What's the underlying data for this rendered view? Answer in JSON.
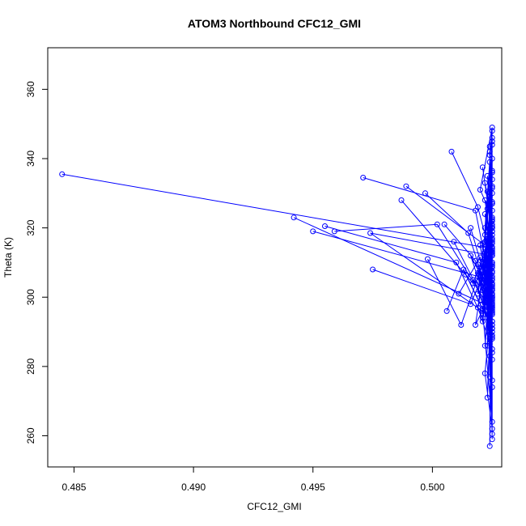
{
  "chart_data": {
    "type": "line",
    "title": "ATOM3 Northbound CFC12_GMI",
    "xlabel": "CFC12_GMI",
    "ylabel": "Theta (K)",
    "xlim": [
      0.4839,
      0.5029
    ],
    "ylim": [
      251,
      372
    ],
    "x_ticks": [
      0.485,
      0.49,
      0.495,
      0.5
    ],
    "x_tick_labels": [
      "0.485",
      "0.490",
      "0.495",
      "0.500"
    ],
    "y_ticks": [
      260,
      280,
      300,
      320,
      340,
      360
    ],
    "y_tick_labels": [
      "260",
      "280",
      "300",
      "320",
      "340",
      "360"
    ],
    "grid": false,
    "legend": "none",
    "marker": "open-circle",
    "color": "#0000ff",
    "series": [
      {
        "x": [
          0.4845,
          0.5025,
          0.5022,
          0.5025,
          0.5018,
          0.5025,
          0.502,
          0.5025,
          0.5022,
          0.5024,
          0.5019,
          0.5025,
          0.5021,
          0.5024,
          0.5023,
          0.4974,
          0.5025,
          0.5021,
          0.5025,
          0.5019,
          0.5025,
          0.5022,
          0.5024,
          0.5023,
          0.5025,
          0.5025,
          0.5024,
          0.5025,
          0.5023,
          0.5025,
          0.5024,
          0.5025,
          0.5021,
          0.5025,
          0.5024,
          0.5025,
          0.5022,
          0.5025,
          0.5024,
          0.5024,
          0.5025,
          0.5024,
          0.5023,
          0.5025,
          0.5024,
          0.5025,
          0.5022,
          0.5025,
          0.5023,
          0.5025,
          0.5024,
          0.5025,
          0.5024,
          0.5025,
          0.5025,
          0.5024,
          0.5025,
          0.5024,
          0.5025,
          0.5025,
          0.5024,
          0.5025,
          0.5025,
          0.5024,
          0.5025,
          0.5025,
          0.5024,
          0.5025,
          0.5024,
          0.5025,
          0.5024,
          0.5025,
          0.5024,
          0.5025,
          0.5024,
          0.5025,
          0.5025,
          0.5024,
          0.5025,
          0.5025,
          0.5024,
          0.5025,
          0.5025,
          0.5024,
          0.5025,
          0.5024,
          0.5025,
          0.5025,
          0.5025,
          0.5024,
          0.5025,
          0.5025,
          0.5024,
          0.5025
        ],
        "y": [
          335.5,
          314.0,
          306.0,
          302.0,
          292.0,
          323.0,
          331.0,
          349.0,
          320.0,
          287.0,
          297.0,
          327.0,
          309.0,
          316.0,
          295.0,
          318.5,
          312.0,
          309.5,
          322.0,
          301.0,
          336.0,
          316.0,
          339.0,
          286.0,
          330.0,
          334.0,
          291.0,
          298.0,
          294.0,
          345.0,
          277.0,
          305.0,
          296.0,
          264.0,
          288.0,
          313.0,
          328.0,
          325.0,
          304.0,
          318.0,
          282.0,
          299.0,
          325.5,
          259.0,
          308.0,
          262.0,
          278.0,
          300.0,
          271.0,
          312.5,
          290.0,
          344.0,
          257.0,
          310.0,
          293.0,
          329.0,
          297.5,
          303.0,
          285.0,
          322.5,
          342.0,
          307.0,
          319.0,
          283.0,
          260.5,
          274.0,
          301.5,
          336.5,
          326.0,
          348.0,
          315.0,
          289.0,
          296.5,
          320.5,
          311.0,
          332.0,
          299.5,
          306.5,
          276.0,
          340.0,
          286.5,
          303.5,
          317.0,
          292.5,
          346.0,
          313.5,
          284.0,
          302.5,
          331.5,
          309.0,
          288.5,
          327.5,
          304.5,
          298.5
        ]
      },
      {
        "x": [
          0.4942,
          0.5025,
          0.502,
          0.5025,
          0.5017,
          0.5024,
          0.5022,
          0.5025,
          0.5021,
          0.5023,
          0.5025,
          0.5024,
          0.5025,
          0.5022,
          0.5024,
          0.5025,
          0.5023,
          0.5025,
          0.5024,
          0.5025,
          0.5025,
          0.5024,
          0.5025,
          0.5023,
          0.5025,
          0.5024,
          0.5025,
          0.5025,
          0.5024,
          0.5025,
          0.5024,
          0.5025,
          0.5025,
          0.5024,
          0.5025,
          0.5025
        ],
        "y": [
          323.0,
          297.0,
          315.0,
          293.0,
          305.0,
          301.0,
          286.0,
          319.0,
          298.0,
          317.5,
          304.0,
          311.5,
          295.5,
          308.5,
          290.5,
          314.5,
          302.0,
          321.0,
          296.0,
          306.0,
          288.0,
          318.0,
          299.0,
          312.0,
          292.0,
          310.5,
          300.5,
          315.5,
          294.5,
          307.5,
          297.0,
          303.0,
          320.0,
          291.5,
          309.5,
          305.5
        ]
      },
      {
        "x": [
          0.495,
          0.5019,
          0.5024,
          0.5016,
          0.5025,
          0.5022,
          0.5025,
          0.5021,
          0.5024,
          0.5025,
          0.5023,
          0.5025
        ],
        "y": [
          319.0,
          306.0,
          295.0,
          312.0,
          300.0,
          318.0,
          292.0,
          302.0,
          314.0,
          296.5,
          308.0,
          303.5
        ]
      },
      {
        "x": [
          0.4955,
          0.501,
          0.5021,
          0.5025,
          0.5018,
          0.5025,
          0.5022,
          0.5024,
          0.5025,
          0.5023,
          0.5025
        ],
        "y": [
          320.5,
          310.0,
          294.0,
          316.0,
          304.0,
          290.0,
          313.0,
          300.0,
          309.0,
          296.0,
          301.0
        ]
      },
      {
        "x": [
          0.4959,
          0.5002,
          0.5022,
          0.5025,
          0.5019,
          0.5025,
          0.5024,
          0.5021,
          0.5025,
          0.5024
        ],
        "y": [
          319.0,
          321.0,
          299.0,
          291.0,
          307.0,
          313.5,
          296.5,
          302.0,
          298.0,
          305.0
        ]
      },
      {
        "x": [
          0.4971,
          0.5018,
          0.5025,
          0.5022,
          0.5025,
          0.502,
          0.5024,
          0.5025,
          0.5023,
          0.5025
        ],
        "y": [
          334.5,
          325.0,
          301.0,
          314.0,
          295.0,
          305.5,
          289.0,
          320.0,
          303.0,
          298.0
        ]
      },
      {
        "x": [
          0.4975,
          0.5016,
          0.5025,
          0.5021,
          0.5024,
          0.5025,
          0.5019,
          0.5025
        ],
        "y": [
          308.0,
          298.0,
          313.0,
          293.0,
          307.0,
          300.0,
          309.5,
          296.0
        ]
      },
      {
        "x": [
          0.4987,
          0.5017,
          0.5024,
          0.5025,
          0.5022,
          0.5025,
          0.5024
        ],
        "y": [
          328.0,
          304.0,
          317.0,
          291.0,
          308.0,
          299.5,
          311.0
        ]
      },
      {
        "x": [
          0.4989,
          0.5021,
          0.5025,
          0.5023,
          0.5025,
          0.5024
        ],
        "y": [
          332.0,
          315.5,
          296.0,
          309.0,
          302.5,
          293.0
        ]
      },
      {
        "x": [
          0.4997,
          0.5015,
          0.5025,
          0.5022,
          0.5025
        ],
        "y": [
          330.0,
          318.5,
          297.0,
          306.0,
          312.0
        ]
      },
      {
        "x": [
          0.4998,
          0.5012,
          0.502,
          0.5025,
          0.5024
        ],
        "y": [
          311.0,
          292.0,
          307.5,
          300.0,
          296.5
        ]
      },
      {
        "x": [
          0.5005,
          0.5018,
          0.5024,
          0.5025,
          0.5022
        ],
        "y": [
          321.0,
          310.5,
          297.0,
          316.5,
          303.0
        ]
      },
      {
        "x": [
          0.5006,
          0.5013,
          0.5025,
          0.5021
        ],
        "y": [
          296.0,
          308.0,
          291.0,
          304.0
        ]
      },
      {
        "x": [
          0.5008,
          0.5019,
          0.5025,
          0.5023,
          0.5025
        ],
        "y": [
          342.0,
          326.0,
          310.0,
          318.0,
          302.0
        ]
      },
      {
        "x": [
          0.5009,
          0.5022,
          0.5025,
          0.5024
        ],
        "y": [
          316.0,
          298.5,
          305.0,
          294.0
        ]
      },
      {
        "x": [
          0.5011,
          0.502,
          0.5025,
          0.5024
        ],
        "y": [
          301.0,
          311.5,
          295.5,
          306.0
        ]
      },
      {
        "x": [
          0.5014,
          0.5021,
          0.5025,
          0.5023,
          0.5025
        ],
        "y": [
          306.5,
          296.5,
          314.0,
          300.5,
          308.5
        ]
      },
      {
        "x": [
          0.5016,
          0.5023,
          0.5025,
          0.5022
        ],
        "y": [
          320.0,
          303.5,
          297.5,
          311.0
        ]
      },
      {
        "x": [
          0.5021,
          0.5025,
          0.5022,
          0.5025,
          0.5024
        ],
        "y": [
          337.5,
          318.0,
          324.0,
          309.0,
          329.0
        ]
      },
      {
        "x": [
          0.5022,
          0.5025,
          0.5023,
          0.5025,
          0.5024
        ],
        "y": [
          333.0,
          322.0,
          330.5,
          312.5,
          326.5
        ]
      },
      {
        "x": [
          0.5024,
          0.5025,
          0.5023,
          0.5025,
          0.5024
        ],
        "y": [
          341.0,
          327.0,
          335.0,
          320.0,
          343.5
        ]
      }
    ]
  }
}
